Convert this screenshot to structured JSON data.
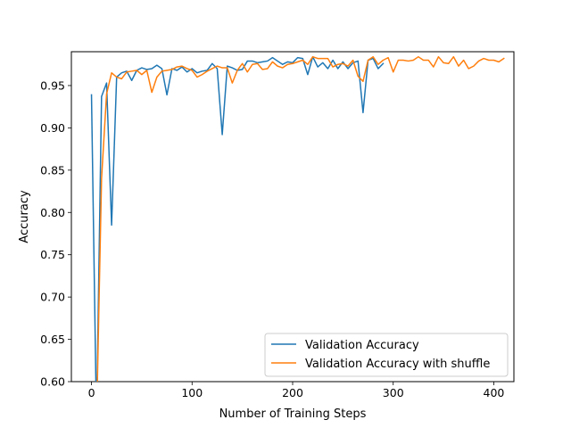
{
  "chart_data": {
    "type": "line",
    "xlabel": "Number of Training Steps",
    "ylabel": "Accuracy",
    "xlim": [
      -20,
      420
    ],
    "ylim": [
      0.6,
      0.99
    ],
    "xticks": [
      0,
      100,
      200,
      300,
      400
    ],
    "yticks": [
      0.6,
      0.65,
      0.7,
      0.75,
      0.8,
      0.85,
      0.9,
      0.95
    ],
    "ytick_labels": [
      "0.60",
      "0.65",
      "0.70",
      "0.75",
      "0.80",
      "0.85",
      "0.90",
      "0.95"
    ],
    "grid": false,
    "legend_position": "lower-right",
    "series": [
      {
        "name": "Validation Accuracy",
        "color": "#1f77b4",
        "x": [
          0,
          5,
          10,
          15,
          20,
          25,
          30,
          35,
          40,
          45,
          50,
          55,
          60,
          65,
          70,
          75,
          80,
          85,
          90,
          95,
          100,
          105,
          110,
          115,
          120,
          125,
          130,
          135,
          140,
          145,
          150,
          155,
          160,
          165,
          170,
          175,
          180,
          185,
          190,
          195,
          200,
          205,
          210,
          215,
          220,
          225,
          230,
          235,
          240,
          245,
          250,
          255,
          260,
          265,
          270,
          275,
          280,
          285,
          290
        ],
        "y": [
          0.939,
          0.55,
          0.937,
          0.953,
          0.785,
          0.96,
          0.965,
          0.967,
          0.956,
          0.968,
          0.971,
          0.969,
          0.97,
          0.974,
          0.97,
          0.939,
          0.97,
          0.968,
          0.972,
          0.966,
          0.97,
          0.965,
          0.967,
          0.968,
          0.976,
          0.97,
          0.892,
          0.973,
          0.971,
          0.968,
          0.969,
          0.979,
          0.979,
          0.977,
          0.978,
          0.979,
          0.983,
          0.979,
          0.975,
          0.978,
          0.977,
          0.983,
          0.982,
          0.963,
          0.984,
          0.972,
          0.977,
          0.97,
          0.98,
          0.97,
          0.978,
          0.97,
          0.977,
          0.979,
          0.918,
          0.98,
          0.982,
          0.97,
          0.976
        ]
      },
      {
        "name": "Validation Accuracy with shuffle",
        "color": "#ff7f0e",
        "x": [
          5,
          10,
          15,
          20,
          25,
          30,
          35,
          40,
          45,
          50,
          55,
          60,
          65,
          70,
          75,
          80,
          85,
          90,
          95,
          100,
          105,
          110,
          115,
          120,
          125,
          130,
          135,
          140,
          145,
          150,
          155,
          160,
          165,
          170,
          175,
          180,
          185,
          190,
          195,
          200,
          205,
          210,
          215,
          220,
          225,
          230,
          235,
          240,
          245,
          250,
          255,
          260,
          265,
          270,
          275,
          280,
          285,
          290,
          295,
          300,
          305,
          310,
          315,
          320,
          325,
          330,
          335,
          340,
          345,
          350,
          355,
          360,
          365,
          370,
          375,
          380,
          385,
          390,
          395,
          400,
          405,
          410
        ],
        "y": [
          0.55,
          0.84,
          0.94,
          0.965,
          0.96,
          0.958,
          0.966,
          0.967,
          0.968,
          0.963,
          0.968,
          0.942,
          0.96,
          0.967,
          0.968,
          0.969,
          0.972,
          0.973,
          0.97,
          0.968,
          0.96,
          0.963,
          0.967,
          0.97,
          0.973,
          0.971,
          0.971,
          0.953,
          0.968,
          0.976,
          0.966,
          0.975,
          0.976,
          0.969,
          0.97,
          0.978,
          0.973,
          0.971,
          0.975,
          0.976,
          0.978,
          0.98,
          0.975,
          0.984,
          0.982,
          0.982,
          0.982,
          0.972,
          0.975,
          0.976,
          0.973,
          0.98,
          0.961,
          0.955,
          0.98,
          0.984,
          0.975,
          0.98,
          0.983,
          0.966,
          0.98,
          0.98,
          0.979,
          0.98,
          0.984,
          0.98,
          0.98,
          0.972,
          0.984,
          0.977,
          0.976,
          0.984,
          0.973,
          0.98,
          0.97,
          0.973,
          0.979,
          0.982,
          0.98,
          0.98,
          0.978,
          0.982
        ]
      }
    ]
  }
}
